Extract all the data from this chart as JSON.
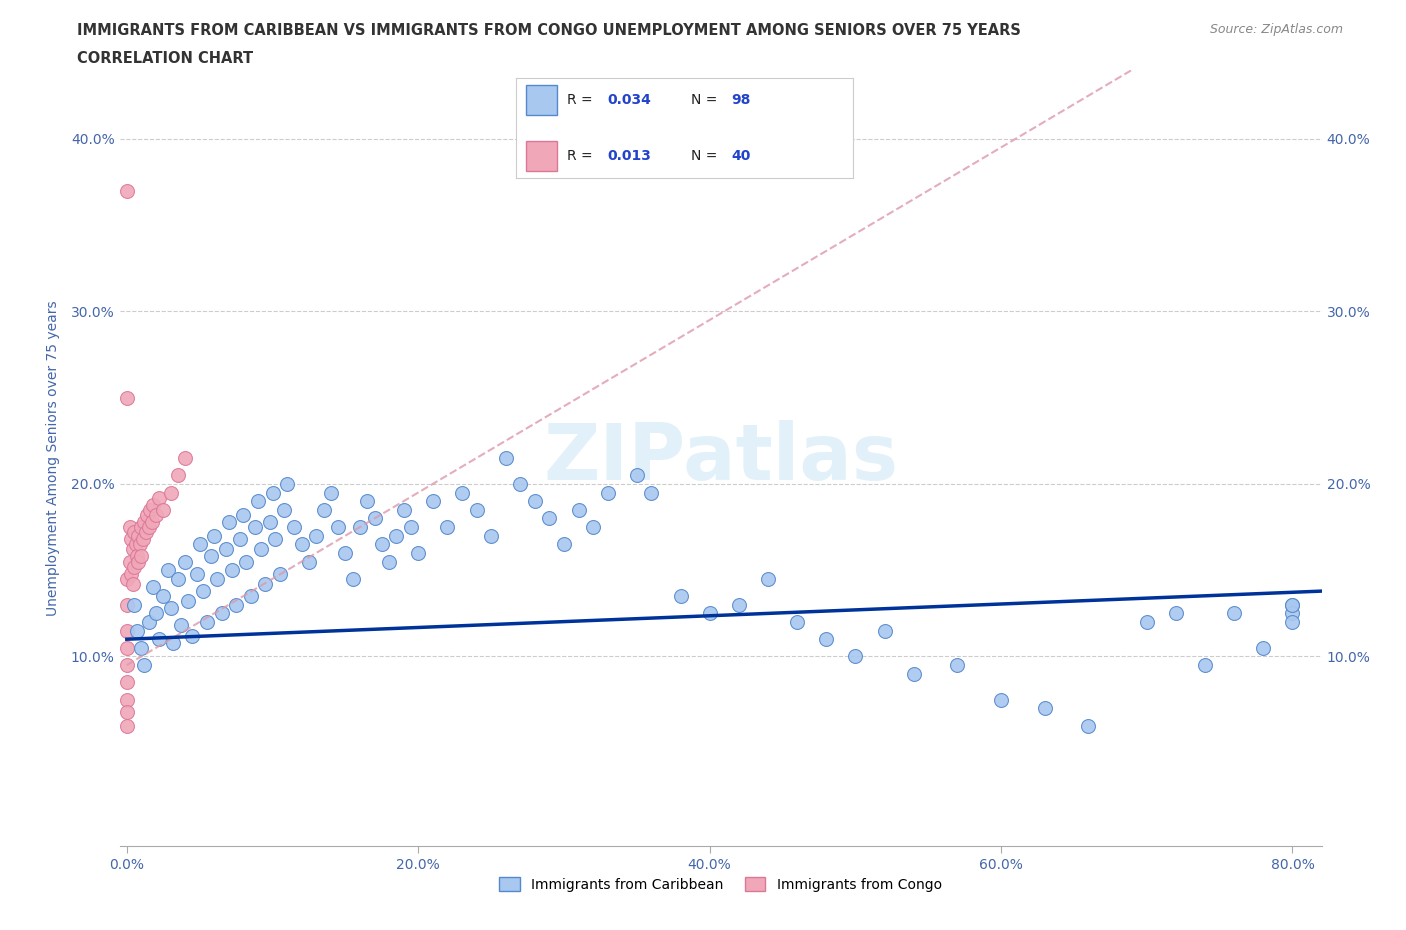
{
  "title_line1": "IMMIGRANTS FROM CARIBBEAN VS IMMIGRANTS FROM CONGO UNEMPLOYMENT AMONG SENIORS OVER 75 YEARS",
  "title_line2": "CORRELATION CHART",
  "source_text": "Source: ZipAtlas.com",
  "ylabel": "Unemployment Among Seniors over 75 years",
  "xlim": [
    -0.005,
    0.82
  ],
  "ylim": [
    -0.01,
    0.44
  ],
  "xticks": [
    0.0,
    0.2,
    0.4,
    0.6,
    0.8
  ],
  "xticklabels": [
    "0.0%",
    "20.0%",
    "40.0%",
    "60.0%",
    "80.0%"
  ],
  "yticks": [
    0.1,
    0.2,
    0.3,
    0.4
  ],
  "yticklabels": [
    "10.0%",
    "20.0%",
    "30.0%",
    "40.0%"
  ],
  "caribbean_color": "#a8c8f0",
  "congo_color": "#f0a8b8",
  "caribbean_edge": "#5588cc",
  "congo_edge": "#dd7799",
  "trendline_caribbean_color": "#003399",
  "trendline_congo_color": "#dd99aa",
  "watermark_text": "ZIPatlas",
  "watermark_color": "#c8dff0",
  "legend_R_caribbean": "0.034",
  "legend_N_caribbean": "98",
  "legend_R_congo": "0.013",
  "legend_N_congo": "40",
  "caribbean_x": [
    0.005,
    0.007,
    0.01,
    0.012,
    0.015,
    0.018,
    0.02,
    0.022,
    0.025,
    0.028,
    0.03,
    0.032,
    0.035,
    0.037,
    0.04,
    0.042,
    0.045,
    0.048,
    0.05,
    0.052,
    0.055,
    0.058,
    0.06,
    0.062,
    0.065,
    0.068,
    0.07,
    0.072,
    0.075,
    0.078,
    0.08,
    0.082,
    0.085,
    0.088,
    0.09,
    0.092,
    0.095,
    0.098,
    0.1,
    0.102,
    0.105,
    0.108,
    0.11,
    0.115,
    0.12,
    0.125,
    0.13,
    0.135,
    0.14,
    0.145,
    0.15,
    0.155,
    0.16,
    0.165,
    0.17,
    0.175,
    0.18,
    0.185,
    0.19,
    0.195,
    0.2,
    0.21,
    0.22,
    0.23,
    0.24,
    0.25,
    0.26,
    0.27,
    0.28,
    0.29,
    0.3,
    0.31,
    0.32,
    0.33,
    0.35,
    0.36,
    0.38,
    0.4,
    0.42,
    0.44,
    0.46,
    0.48,
    0.5,
    0.52,
    0.54,
    0.57,
    0.6,
    0.63,
    0.66,
    0.7,
    0.72,
    0.74,
    0.76,
    0.78,
    0.8,
    0.8,
    0.8,
    0.8
  ],
  "caribbean_y": [
    0.13,
    0.115,
    0.105,
    0.095,
    0.12,
    0.14,
    0.125,
    0.11,
    0.135,
    0.15,
    0.128,
    0.108,
    0.145,
    0.118,
    0.155,
    0.132,
    0.112,
    0.148,
    0.165,
    0.138,
    0.12,
    0.158,
    0.17,
    0.145,
    0.125,
    0.162,
    0.178,
    0.15,
    0.13,
    0.168,
    0.182,
    0.155,
    0.135,
    0.175,
    0.19,
    0.162,
    0.142,
    0.178,
    0.195,
    0.168,
    0.148,
    0.185,
    0.2,
    0.175,
    0.165,
    0.155,
    0.17,
    0.185,
    0.195,
    0.175,
    0.16,
    0.145,
    0.175,
    0.19,
    0.18,
    0.165,
    0.155,
    0.17,
    0.185,
    0.175,
    0.16,
    0.19,
    0.175,
    0.195,
    0.185,
    0.17,
    0.215,
    0.2,
    0.19,
    0.18,
    0.165,
    0.185,
    0.175,
    0.195,
    0.205,
    0.195,
    0.135,
    0.125,
    0.13,
    0.145,
    0.12,
    0.11,
    0.1,
    0.115,
    0.09,
    0.095,
    0.075,
    0.07,
    0.06,
    0.12,
    0.125,
    0.095,
    0.125,
    0.105,
    0.13,
    0.125,
    0.12,
    0.13
  ],
  "congo_x": [
    0.0,
    0.0,
    0.0,
    0.0,
    0.0,
    0.0,
    0.0,
    0.0,
    0.0,
    0.0,
    0.002,
    0.002,
    0.003,
    0.003,
    0.004,
    0.004,
    0.005,
    0.005,
    0.006,
    0.007,
    0.008,
    0.008,
    0.009,
    0.01,
    0.01,
    0.011,
    0.012,
    0.013,
    0.014,
    0.015,
    0.016,
    0.017,
    0.018,
    0.02,
    0.022,
    0.025,
    0.03,
    0.035,
    0.04,
    0.0
  ],
  "congo_y": [
    0.37,
    0.145,
    0.13,
    0.115,
    0.105,
    0.095,
    0.085,
    0.075,
    0.068,
    0.06,
    0.175,
    0.155,
    0.168,
    0.148,
    0.162,
    0.142,
    0.172,
    0.152,
    0.165,
    0.158,
    0.17,
    0.155,
    0.165,
    0.175,
    0.158,
    0.168,
    0.178,
    0.172,
    0.182,
    0.175,
    0.185,
    0.178,
    0.188,
    0.182,
    0.192,
    0.185,
    0.195,
    0.205,
    0.215,
    0.25
  ],
  "background_color": "#ffffff",
  "grid_color": "#cccccc",
  "title_color": "#333333",
  "axis_label_color": "#4466aa",
  "tick_color": "#4466aa",
  "trendline_caribbean_slope": 0.034,
  "trendline_caribbean_intercept": 0.11,
  "trendline_congo_slope": 0.5,
  "trendline_congo_intercept": 0.095
}
